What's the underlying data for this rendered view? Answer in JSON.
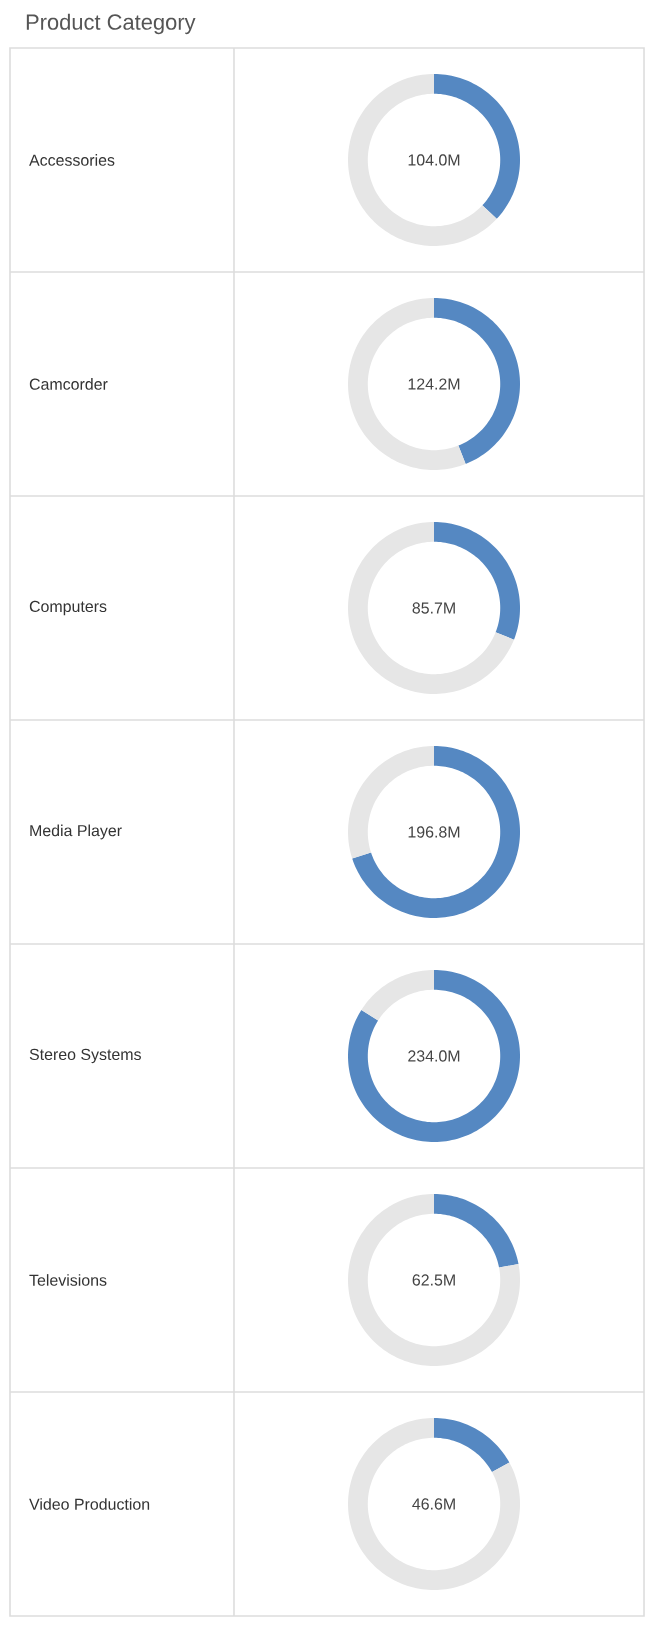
{
  "chart_data": [
    {
      "type": "donut",
      "title": "Product Category",
      "ylabel": "Accessories",
      "categories": [
        null,
        null
      ],
      "values": [
        37,
        63
      ],
      "colors": [
        "#5588c2",
        "#e6e6e6"
      ],
      "annotations": [
        "104.0M"
      ]
    },
    {
      "type": "donut",
      "ylabel": "Camcorder",
      "categories": [
        null,
        null
      ],
      "values": [
        44,
        56
      ],
      "colors": [
        "#5588c2",
        "#e6e6e6"
      ],
      "annotations": [
        "124.2M"
      ]
    },
    {
      "type": "donut",
      "ylabel": "Computers",
      "categories": [
        null,
        null
      ],
      "values": [
        31,
        69
      ],
      "colors": [
        "#5588c2",
        "#e6e6e6"
      ],
      "annotations": [
        "85.7M"
      ]
    },
    {
      "type": "donut",
      "ylabel": "Media Player",
      "categories": [
        null,
        null
      ],
      "values": [
        70,
        30
      ],
      "colors": [
        "#5588c2",
        "#e6e6e6"
      ],
      "annotations": [
        "196.8M"
      ]
    },
    {
      "type": "donut",
      "ylabel": "Stereo Systems",
      "categories": [
        null,
        null
      ],
      "values": [
        84,
        16
      ],
      "colors": [
        "#5588c2",
        "#e6e6e6"
      ],
      "annotations": [
        "234.0M"
      ]
    },
    {
      "type": "donut",
      "ylabel": "Televisions",
      "categories": [
        null,
        null
      ],
      "values": [
        22,
        78
      ],
      "colors": [
        "#5588c2",
        "#e6e6e6"
      ],
      "annotations": [
        "62.5M"
      ]
    },
    {
      "type": "donut",
      "ylabel": "Video Production",
      "categories": [
        null,
        null
      ],
      "values": [
        17,
        83
      ],
      "colors": [
        "#5588c2",
        "#e6e6e6"
      ],
      "annotations": [
        "46.6M"
      ]
    }
  ]
}
